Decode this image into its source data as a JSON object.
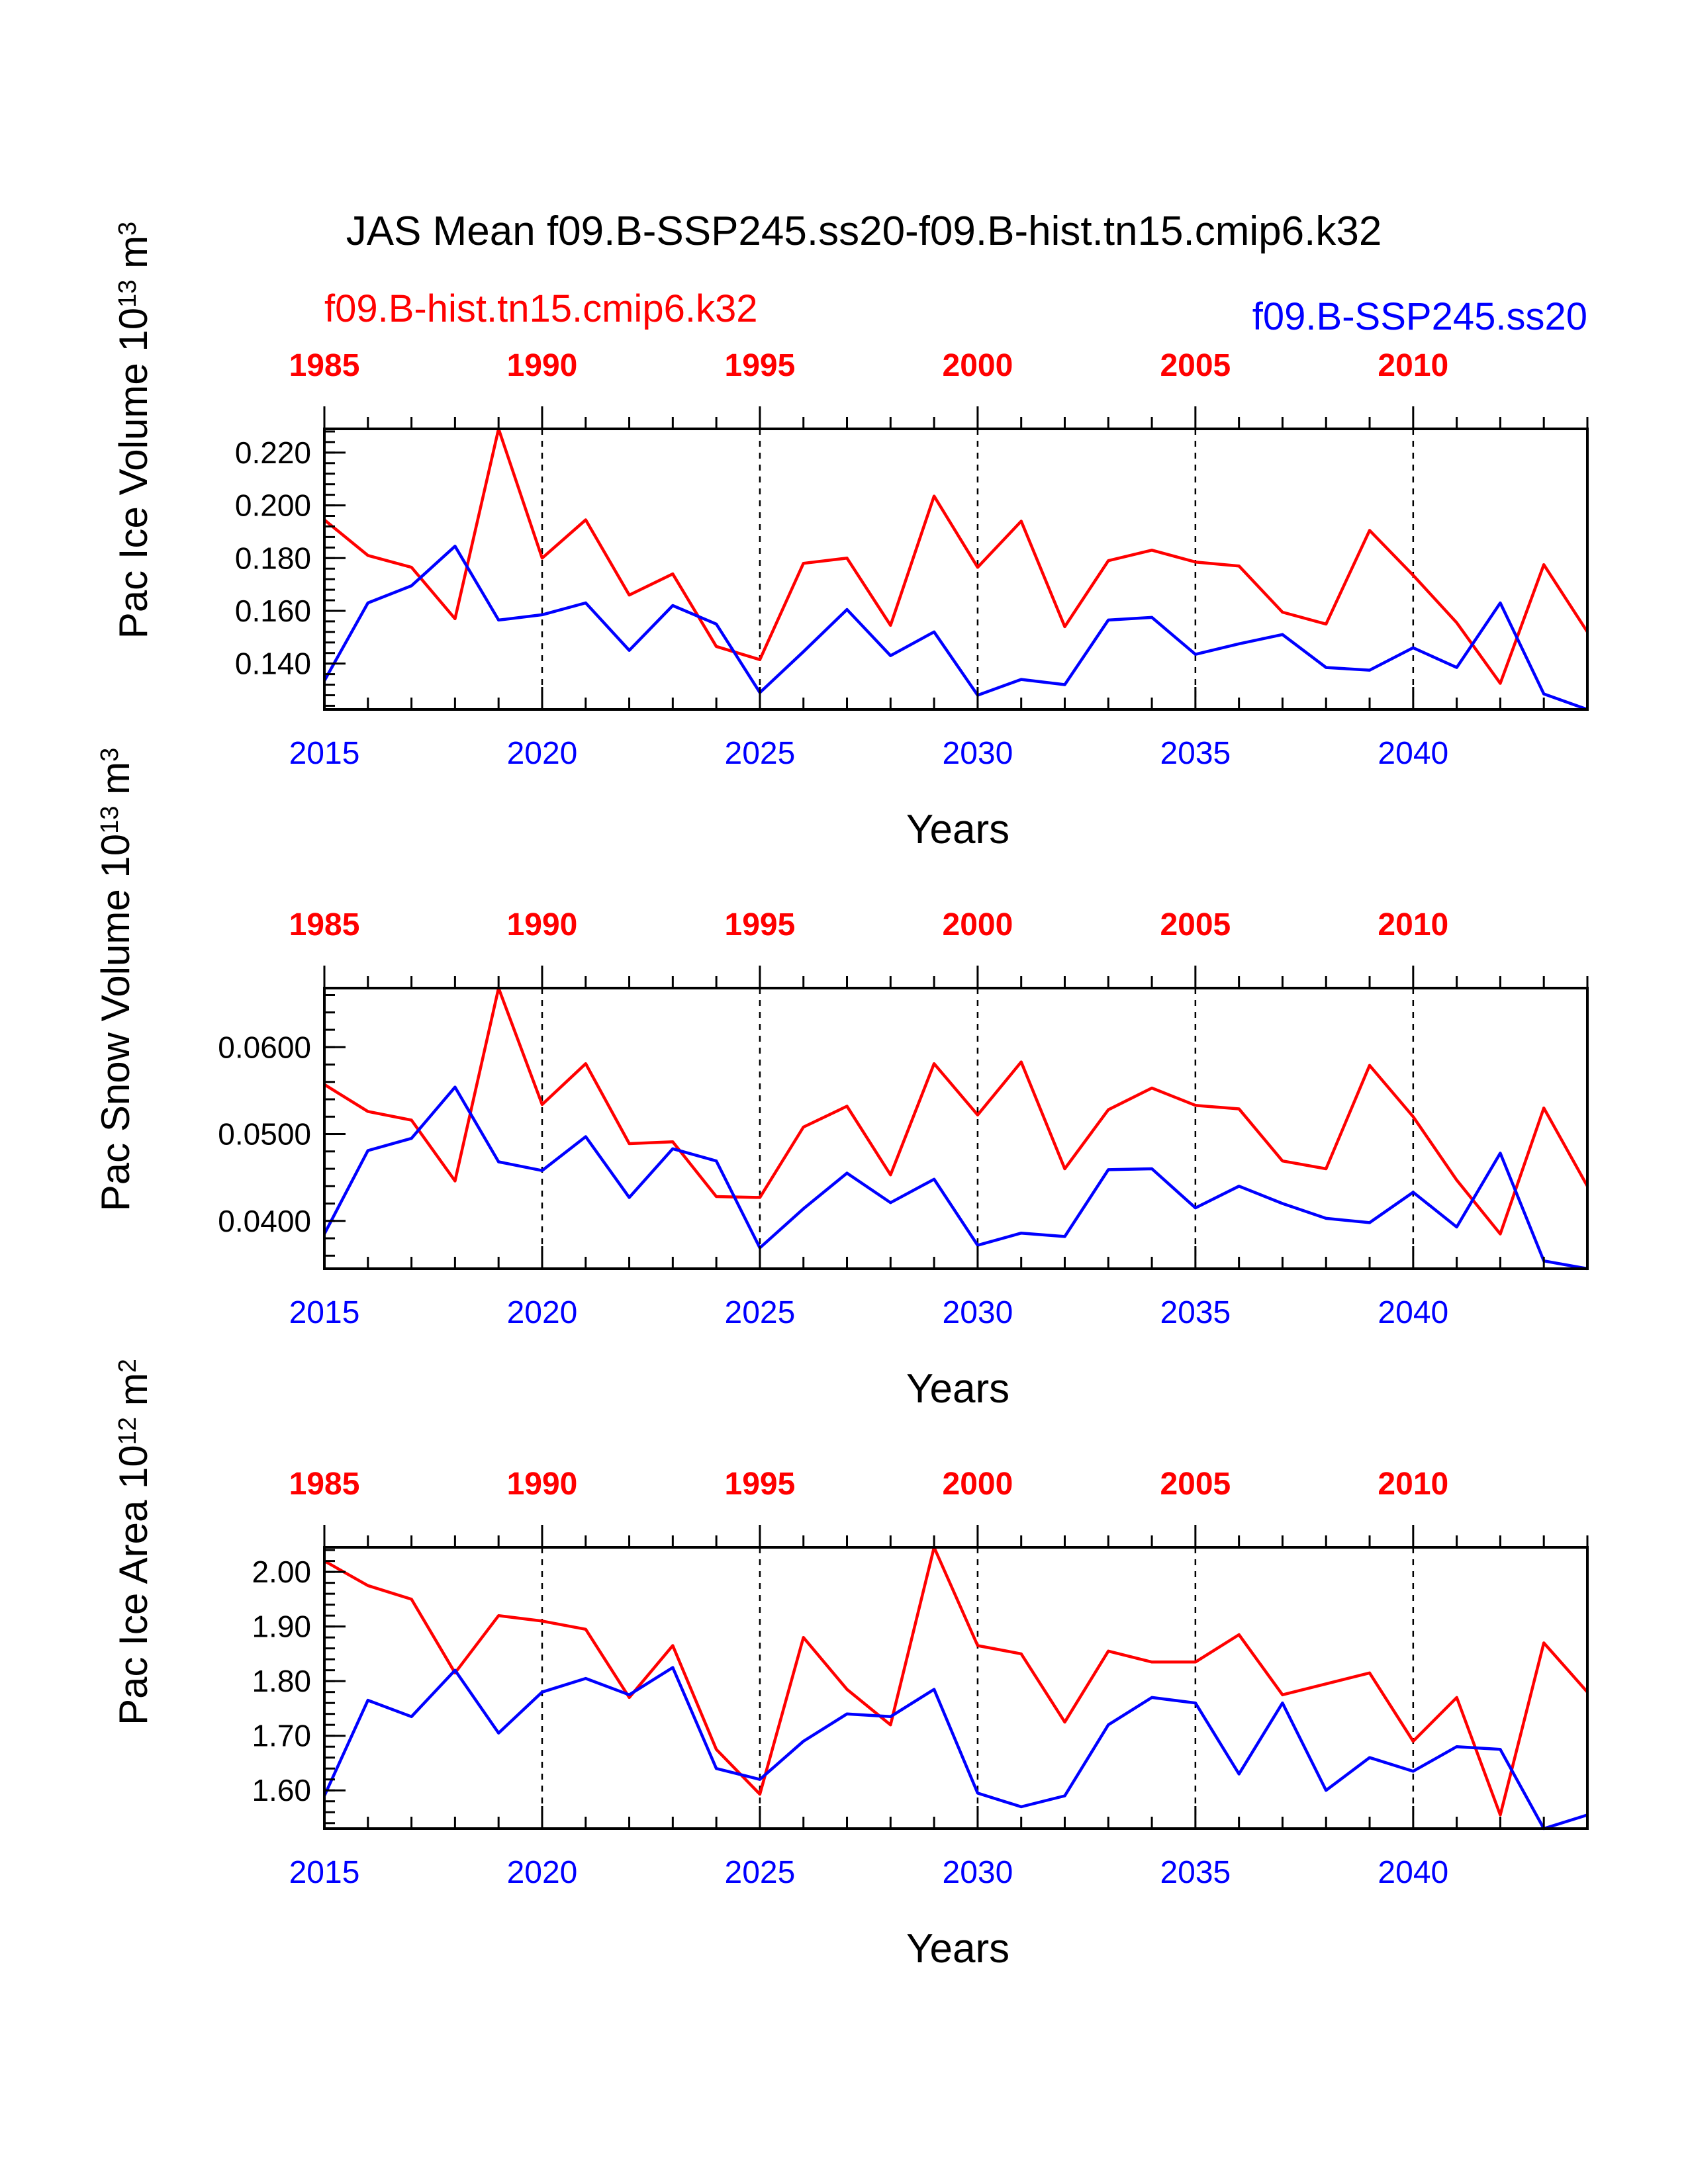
{
  "title": "JAS Mean f09.B-SSP245.ss20-f09.B-hist.tn15.cmip6.k32",
  "legend": {
    "left": {
      "label": "f09.B-hist.tn15.cmip6.k32",
      "color": "#ff0000"
    },
    "right": {
      "label": "f09.B-SSP245.ss20",
      "color": "#0000ff"
    }
  },
  "colors": {
    "hist": "#ff0000",
    "ssp": "#0000ff",
    "axis": "#000000"
  },
  "chart_data": [
    {
      "type": "line",
      "ylabel": "Pac Ice Volume",
      "unit_base": "10",
      "unit_exp": "13",
      "unit_name": "m",
      "unit_pow": "3",
      "xlabel": "Years",
      "ylim": [
        0.1226,
        0.229
      ],
      "yticks": [
        0.14,
        0.16,
        0.18,
        0.2,
        0.22
      ],
      "ytick_labels": [
        "0.140",
        "0.160",
        "0.180",
        "0.200",
        "0.220"
      ],
      "yminor_step": 0.004,
      "bottom_xlim": [
        2015,
        2044
      ],
      "bottom_ticks": [
        "2015",
        "2020",
        "2025",
        "2030",
        "2035",
        "2040"
      ],
      "top_ticks": [
        "1985",
        "1990",
        "1995",
        "2000",
        "2005",
        "2010"
      ],
      "grid": "dashed vertical lines at major year ticks",
      "series": [
        {
          "name": "f09.B-hist.tn15.cmip6.k32",
          "color": "#ff0000",
          "x": [
            2015,
            2016,
            2017,
            2018,
            2019,
            2020,
            2021,
            2022,
            2023,
            2024,
            2025,
            2026,
            2027,
            2028,
            2029,
            2030,
            2031,
            2032,
            2033,
            2034,
            2035,
            2036,
            2037,
            2038,
            2039,
            2040,
            2041,
            2042,
            2043,
            2044
          ],
          "values": [
            0.1945,
            0.181,
            0.1765,
            0.157,
            0.229,
            0.18,
            0.1945,
            0.166,
            0.174,
            0.1465,
            0.1415,
            0.178,
            0.18,
            0.1545,
            0.2035,
            0.1765,
            0.194,
            0.154,
            0.179,
            0.183,
            0.1785,
            0.177,
            0.1595,
            0.155,
            0.1905,
            0.1735,
            0.1555,
            0.1325,
            0.1775,
            0.152
          ]
        },
        {
          "name": "f09.B-SSP245.ss20",
          "color": "#0000ff",
          "x": [
            2015,
            2016,
            2017,
            2018,
            2019,
            2020,
            2021,
            2022,
            2023,
            2024,
            2025,
            2026,
            2027,
            2028,
            2029,
            2030,
            2031,
            2032,
            2033,
            2034,
            2035,
            2036,
            2037,
            2038,
            2039,
            2040,
            2041,
            2042,
            2043,
            2044
          ],
          "values": [
            0.1335,
            0.163,
            0.1695,
            0.1845,
            0.1565,
            0.1585,
            0.163,
            0.145,
            0.162,
            0.155,
            0.129,
            0.1445,
            0.1605,
            0.143,
            0.152,
            0.128,
            0.134,
            0.132,
            0.1565,
            0.1575,
            0.1435,
            0.1475,
            0.151,
            0.1385,
            0.1375,
            0.146,
            0.1385,
            0.163,
            0.1285,
            0.1226
          ]
        }
      ]
    },
    {
      "type": "line",
      "ylabel": "Pac Snow Volume",
      "unit_base": "10",
      "unit_exp": "13",
      "unit_name": "m",
      "unit_pow": "3",
      "xlabel": "Years",
      "ylim": [
        0.0345,
        0.0668
      ],
      "yticks": [
        0.04,
        0.05,
        0.06
      ],
      "ytick_labels": [
        "0.0400",
        "0.0500",
        "0.0600"
      ],
      "yminor_step": 0.002,
      "bottom_xlim": [
        2015,
        2044
      ],
      "bottom_ticks": [
        "2015",
        "2020",
        "2025",
        "2030",
        "2035",
        "2040"
      ],
      "top_ticks": [
        "1985",
        "1990",
        "1995",
        "2000",
        "2005",
        "2010"
      ],
      "grid": "dashed vertical lines at major year ticks",
      "series": [
        {
          "name": "f09.B-hist.tn15.cmip6.k32",
          "color": "#ff0000",
          "x": [
            2015,
            2016,
            2017,
            2018,
            2019,
            2020,
            2021,
            2022,
            2023,
            2024,
            2025,
            2026,
            2027,
            2028,
            2029,
            2030,
            2031,
            2032,
            2033,
            2034,
            2035,
            2036,
            2037,
            2038,
            2039,
            2040,
            2041,
            2042,
            2043,
            2044
          ],
          "values": [
            0.0557,
            0.0526,
            0.0516,
            0.0446,
            0.0668,
            0.0534,
            0.0581,
            0.0489,
            0.0491,
            0.0428,
            0.0427,
            0.0508,
            0.0532,
            0.0453,
            0.0581,
            0.0522,
            0.0583,
            0.046,
            0.0528,
            0.0553,
            0.0533,
            0.0529,
            0.0469,
            0.046,
            0.0579,
            0.052,
            0.0447,
            0.0385,
            0.053,
            0.044
          ]
        },
        {
          "name": "f09.B-SSP245.ss20",
          "color": "#0000ff",
          "x": [
            2015,
            2016,
            2017,
            2018,
            2019,
            2020,
            2021,
            2022,
            2023,
            2024,
            2025,
            2026,
            2027,
            2028,
            2029,
            2030,
            2031,
            2032,
            2033,
            2034,
            2035,
            2036,
            2037,
            2038,
            2039,
            2040,
            2041,
            2042,
            2043,
            2044
          ],
          "values": [
            0.0385,
            0.0481,
            0.0495,
            0.0554,
            0.0468,
            0.0458,
            0.0497,
            0.0427,
            0.0483,
            0.0469,
            0.0369,
            0.0414,
            0.0455,
            0.0421,
            0.0448,
            0.0372,
            0.0386,
            0.0382,
            0.0459,
            0.046,
            0.0415,
            0.044,
            0.042,
            0.0403,
            0.0398,
            0.0433,
            0.0393,
            0.0478,
            0.0354,
            0.0345
          ]
        }
      ]
    },
    {
      "type": "line",
      "ylabel": "Pac Ice Area",
      "unit_base": "10",
      "unit_exp": "12",
      "unit_name": "m",
      "unit_pow": "2",
      "xlabel": "Years",
      "ylim": [
        1.53,
        2.045
      ],
      "yticks": [
        1.6,
        1.7,
        1.8,
        1.9,
        2.0
      ],
      "ytick_labels": [
        "1.60",
        "1.70",
        "1.80",
        "1.90",
        "2.00"
      ],
      "yminor_step": 0.02,
      "bottom_xlim": [
        2015,
        2044
      ],
      "bottom_ticks": [
        "2015",
        "2020",
        "2025",
        "2030",
        "2035",
        "2040"
      ],
      "top_ticks": [
        "1985",
        "1990",
        "1995",
        "2000",
        "2005",
        "2010"
      ],
      "grid": "dashed vertical lines at major year ticks",
      "series": [
        {
          "name": "f09.B-hist.tn15.cmip6.k32",
          "color": "#ff0000",
          "x": [
            2015,
            2016,
            2017,
            2018,
            2019,
            2020,
            2021,
            2022,
            2023,
            2024,
            2025,
            2026,
            2027,
            2028,
            2029,
            2030,
            2031,
            2032,
            2033,
            2034,
            2035,
            2036,
            2037,
            2038,
            2039,
            2040,
            2041,
            2042,
            2043,
            2044
          ],
          "values": [
            2.02,
            1.975,
            1.95,
            1.815,
            1.92,
            1.91,
            1.895,
            1.77,
            1.865,
            1.675,
            1.593,
            1.88,
            1.785,
            1.72,
            2.045,
            1.865,
            1.85,
            1.725,
            1.855,
            1.835,
            1.835,
            1.885,
            1.775,
            1.795,
            1.815,
            1.69,
            1.77,
            1.555,
            1.87,
            1.78
          ]
        },
        {
          "name": "f09.B-SSP245.ss20",
          "color": "#0000ff",
          "x": [
            2015,
            2016,
            2017,
            2018,
            2019,
            2020,
            2021,
            2022,
            2023,
            2024,
            2025,
            2026,
            2027,
            2028,
            2029,
            2030,
            2031,
            2032,
            2033,
            2034,
            2035,
            2036,
            2037,
            2038,
            2039,
            2040,
            2041,
            2042,
            2043,
            2044
          ],
          "values": [
            1.59,
            1.765,
            1.735,
            1.82,
            1.705,
            1.78,
            1.805,
            1.775,
            1.825,
            1.64,
            1.62,
            1.69,
            1.74,
            1.735,
            1.785,
            1.595,
            1.57,
            1.59,
            1.72,
            1.77,
            1.76,
            1.63,
            1.76,
            1.6,
            1.66,
            1.635,
            1.68,
            1.675,
            1.53,
            1.555
          ]
        }
      ]
    }
  ]
}
